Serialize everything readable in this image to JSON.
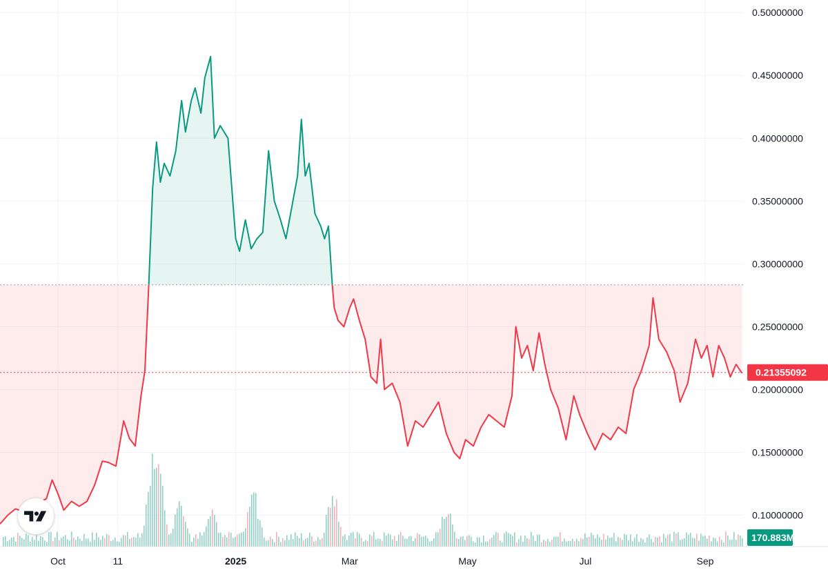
{
  "colors": {
    "up": "#089981",
    "down": "#f23645",
    "up_fill": "rgba(8,153,129,0.10)",
    "down_fill": "rgba(242,54,69,0.10)",
    "grid": "#f0f3fa",
    "text": "#131722"
  },
  "branding": {
    "logo_icon": "tradingview-logo-icon"
  },
  "chart_data": {
    "type": "area",
    "baseline": 0.2833,
    "ylim": [
      0.075,
      0.51
    ],
    "price_axis_ticks": [
      "0.50000000",
      "0.45000000",
      "0.40000000",
      "0.35000000",
      "0.30000000",
      "0.25000000",
      "0.20000000",
      "0.15000000",
      "0.10000000"
    ],
    "time_axis_ticks": [
      {
        "label": "Oct",
        "date": "2024-10-01",
        "bold": false
      },
      {
        "label": "11",
        "date": "2024-11-01",
        "bold": false
      },
      {
        "label": "2025",
        "date": "2025-01-01",
        "bold": true
      },
      {
        "label": "Mar",
        "date": "2025-03-01",
        "bold": false
      },
      {
        "label": "May",
        "date": "2025-05-01",
        "bold": false
      },
      {
        "label": "Jul",
        "date": "2025-07-01",
        "bold": false
      },
      {
        "label": "Sep",
        "date": "2025-09-01",
        "bold": false
      }
    ],
    "last_price": "0.21355092",
    "last_volume": "170.883M",
    "price": [
      [
        "2024-09-01",
        0.093
      ],
      [
        "2024-09-05",
        0.1
      ],
      [
        "2024-09-09",
        0.105
      ],
      [
        "2024-09-13",
        0.103
      ],
      [
        "2024-09-17",
        0.109
      ],
      [
        "2024-09-21",
        0.11
      ],
      [
        "2024-09-25",
        0.113
      ],
      [
        "2024-09-28",
        0.128
      ],
      [
        "2024-10-01",
        0.117
      ],
      [
        "2024-10-04",
        0.104
      ],
      [
        "2024-10-08",
        0.111
      ],
      [
        "2024-10-12",
        0.107
      ],
      [
        "2024-10-16",
        0.111
      ],
      [
        "2024-10-20",
        0.124
      ],
      [
        "2024-10-24",
        0.143
      ],
      [
        "2024-10-27",
        0.142
      ],
      [
        "2024-10-31",
        0.139
      ],
      [
        "2024-11-04",
        0.175
      ],
      [
        "2024-11-07",
        0.161
      ],
      [
        "2024-11-10",
        0.155
      ],
      [
        "2024-11-13",
        0.195
      ],
      [
        "2024-11-15",
        0.215
      ],
      [
        "2024-11-17",
        0.283
      ],
      [
        "2024-11-19",
        0.36
      ],
      [
        "2024-11-21",
        0.397
      ],
      [
        "2024-11-23",
        0.365
      ],
      [
        "2024-11-25",
        0.38
      ],
      [
        "2024-11-28",
        0.37
      ],
      [
        "2024-12-01",
        0.39
      ],
      [
        "2024-12-04",
        0.43
      ],
      [
        "2024-12-06",
        0.405
      ],
      [
        "2024-12-09",
        0.43
      ],
      [
        "2024-12-11",
        0.44
      ],
      [
        "2024-12-14",
        0.42
      ],
      [
        "2024-12-16",
        0.448
      ],
      [
        "2024-12-19",
        0.465
      ],
      [
        "2024-12-21",
        0.4
      ],
      [
        "2024-12-24",
        0.41
      ],
      [
        "2024-12-28",
        0.4
      ],
      [
        "2025-01-01",
        0.32
      ],
      [
        "2025-01-03",
        0.31
      ],
      [
        "2025-01-06",
        0.335
      ],
      [
        "2025-01-09",
        0.312
      ],
      [
        "2025-01-12",
        0.32
      ],
      [
        "2025-01-15",
        0.325
      ],
      [
        "2025-01-18",
        0.39
      ],
      [
        "2025-01-21",
        0.35
      ],
      [
        "2025-01-24",
        0.336
      ],
      [
        "2025-01-27",
        0.32
      ],
      [
        "2025-01-30",
        0.345
      ],
      [
        "2025-02-02",
        0.37
      ],
      [
        "2025-02-04",
        0.415
      ],
      [
        "2025-02-06",
        0.37
      ],
      [
        "2025-02-08",
        0.38
      ],
      [
        "2025-02-11",
        0.34
      ],
      [
        "2025-02-14",
        0.33
      ],
      [
        "2025-02-16",
        0.32
      ],
      [
        "2025-02-18",
        0.33
      ],
      [
        "2025-02-20",
        0.283
      ],
      [
        "2025-02-21",
        0.265
      ],
      [
        "2025-02-23",
        0.255
      ],
      [
        "2025-02-26",
        0.25
      ],
      [
        "2025-03-01",
        0.265
      ],
      [
        "2025-03-03",
        0.272
      ],
      [
        "2025-03-06",
        0.255
      ],
      [
        "2025-03-09",
        0.24
      ],
      [
        "2025-03-12",
        0.21
      ],
      [
        "2025-03-15",
        0.205
      ],
      [
        "2025-03-17",
        0.24
      ],
      [
        "2025-03-19",
        0.2
      ],
      [
        "2025-03-23",
        0.205
      ],
      [
        "2025-03-27",
        0.19
      ],
      [
        "2025-03-31",
        0.155
      ],
      [
        "2025-04-04",
        0.175
      ],
      [
        "2025-04-08",
        0.17
      ],
      [
        "2025-04-12",
        0.18
      ],
      [
        "2025-04-16",
        0.19
      ],
      [
        "2025-04-20",
        0.165
      ],
      [
        "2025-04-24",
        0.15
      ],
      [
        "2025-04-27",
        0.145
      ],
      [
        "2025-04-30",
        0.16
      ],
      [
        "2025-05-04",
        0.155
      ],
      [
        "2025-05-08",
        0.17
      ],
      [
        "2025-05-12",
        0.18
      ],
      [
        "2025-05-16",
        0.175
      ],
      [
        "2025-05-20",
        0.17
      ],
      [
        "2025-05-24",
        0.195
      ],
      [
        "2025-05-26",
        0.25
      ],
      [
        "2025-05-29",
        0.225
      ],
      [
        "2025-06-01",
        0.235
      ],
      [
        "2025-06-04",
        0.215
      ],
      [
        "2025-06-07",
        0.245
      ],
      [
        "2025-06-10",
        0.22
      ],
      [
        "2025-06-13",
        0.2
      ],
      [
        "2025-06-17",
        0.185
      ],
      [
        "2025-06-21",
        0.16
      ],
      [
        "2025-06-25",
        0.195
      ],
      [
        "2025-06-28",
        0.18
      ],
      [
        "2025-07-02",
        0.165
      ],
      [
        "2025-07-06",
        0.152
      ],
      [
        "2025-07-10",
        0.165
      ],
      [
        "2025-07-14",
        0.16
      ],
      [
        "2025-07-18",
        0.17
      ],
      [
        "2025-07-22",
        0.165
      ],
      [
        "2025-07-26",
        0.2
      ],
      [
        "2025-07-30",
        0.215
      ],
      [
        "2025-08-03",
        0.235
      ],
      [
        "2025-08-05",
        0.273
      ],
      [
        "2025-08-08",
        0.24
      ],
      [
        "2025-08-12",
        0.23
      ],
      [
        "2025-08-16",
        0.215
      ],
      [
        "2025-08-19",
        0.19
      ],
      [
        "2025-08-23",
        0.205
      ],
      [
        "2025-08-27",
        0.24
      ],
      [
        "2025-08-30",
        0.225
      ],
      [
        "2025-09-02",
        0.235
      ],
      [
        "2025-09-05",
        0.21
      ],
      [
        "2025-09-08",
        0.235
      ],
      [
        "2025-09-11",
        0.225
      ],
      [
        "2025-09-14",
        0.21
      ],
      [
        "2025-09-17",
        0.22
      ],
      [
        "2025-09-20",
        0.213
      ]
    ],
    "volume_peaks": [
      [
        "2024-11-18",
        50
      ],
      [
        "2024-11-20",
        90
      ],
      [
        "2024-11-22",
        65
      ],
      [
        "2024-12-03",
        45
      ],
      [
        "2024-12-19",
        35
      ],
      [
        "2025-01-10",
        45
      ],
      [
        "2025-02-20",
        50
      ],
      [
        "2025-04-20",
        33
      ]
    ]
  }
}
